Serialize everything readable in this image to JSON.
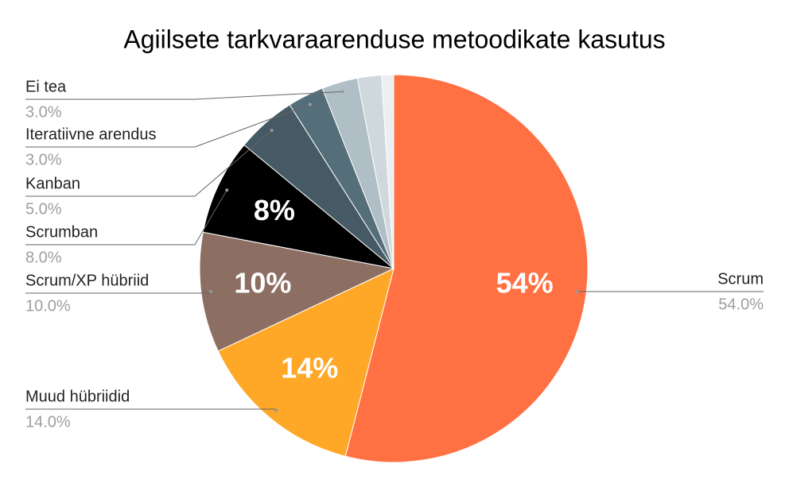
{
  "chart_data": {
    "type": "pie",
    "title": "Agiilsete tarkvaraarenduse metoodikate kasutus",
    "categories": [
      "Scrum",
      "Muud hübriidid",
      "Scrum/XP hübriid",
      "Scrumban",
      "Kanban",
      "Iteratiivne arendus",
      "Ei tea",
      null,
      null
    ],
    "values": [
      54,
      14,
      10,
      8,
      5,
      3,
      3,
      2,
      1
    ],
    "value_labels": [
      "54%",
      "14%",
      "10%",
      "8%",
      null,
      null,
      null,
      null,
      null
    ],
    "outer_value_labels": [
      "54.0%",
      "14.0%",
      "10.0%",
      "8.0%",
      "5.0%",
      "3.0%",
      "3.0%",
      null,
      null
    ],
    "colors": [
      "#ff7043",
      "#ffa726",
      "#8d6e63",
      "#000000",
      "#455a64",
      "#546e7a",
      "#b0bec5",
      "#cfd8dc",
      "#eceff1"
    ]
  }
}
